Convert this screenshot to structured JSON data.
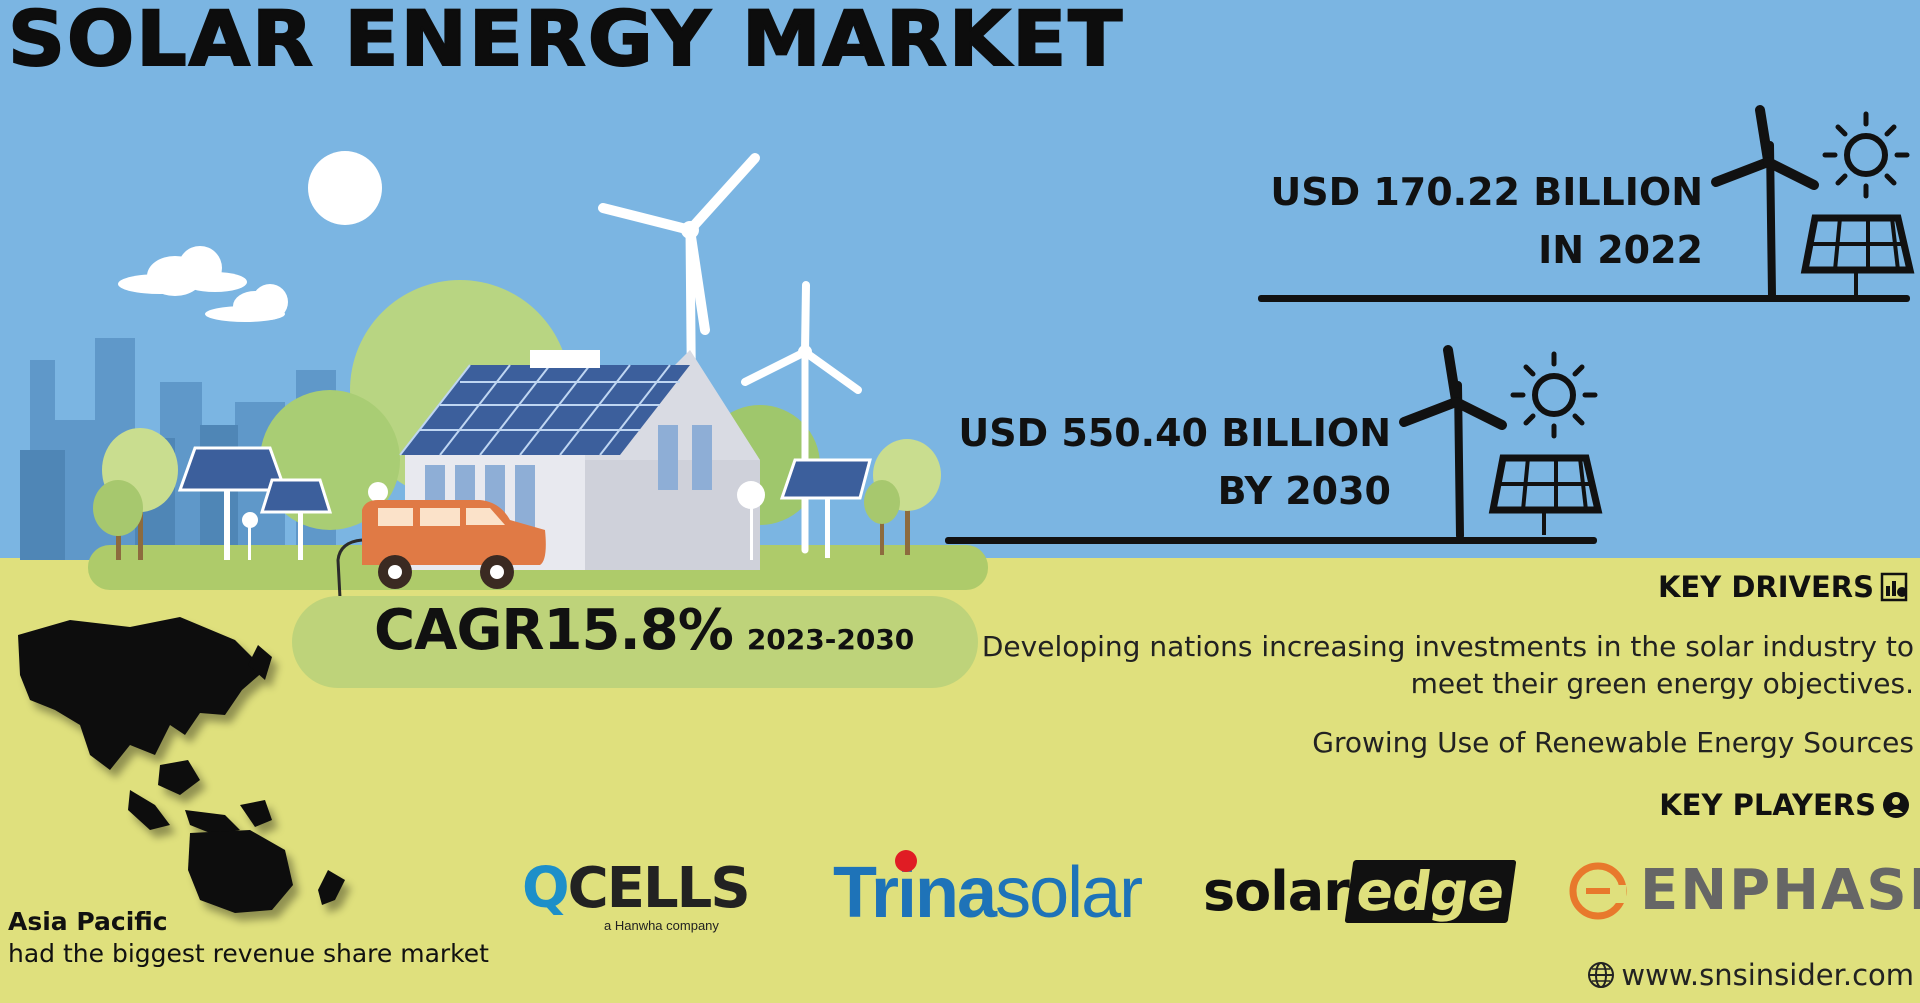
{
  "title": "SOLAR ENERGY MARKET",
  "market_size": [
    {
      "line1": "USD 170.22 BILLION",
      "line2": "IN 2022"
    },
    {
      "line1": "USD 550.40 BILLION",
      "line2": "BY 2030"
    }
  ],
  "cagr": {
    "label": "CAGR",
    "value": "15.8%",
    "period": "2023-2030"
  },
  "key_drivers": {
    "heading": "KEY DRIVERS",
    "items": [
      "Developing nations increasing investments in the solar industry to meet their green energy objectives.",
      "Growing Use of Renewable Energy Sources"
    ]
  },
  "region": {
    "name": "Asia Pacific",
    "description": "had the biggest revenue share market"
  },
  "key_players": {
    "heading": "KEY PLAYERS",
    "logos": [
      {
        "main_q": "Q",
        "main_rest": "CELLS",
        "tagline": "a Hanwha company"
      },
      {
        "bold": "Trina",
        "light": "solar"
      },
      {
        "left": "solar",
        "right": "edge"
      },
      {
        "name": "ENPHASE"
      }
    ]
  },
  "website": "www.snsinsider.com",
  "colors": {
    "sky": "#7bb5e2",
    "ground": "#dfe07d",
    "text": "#111111"
  }
}
